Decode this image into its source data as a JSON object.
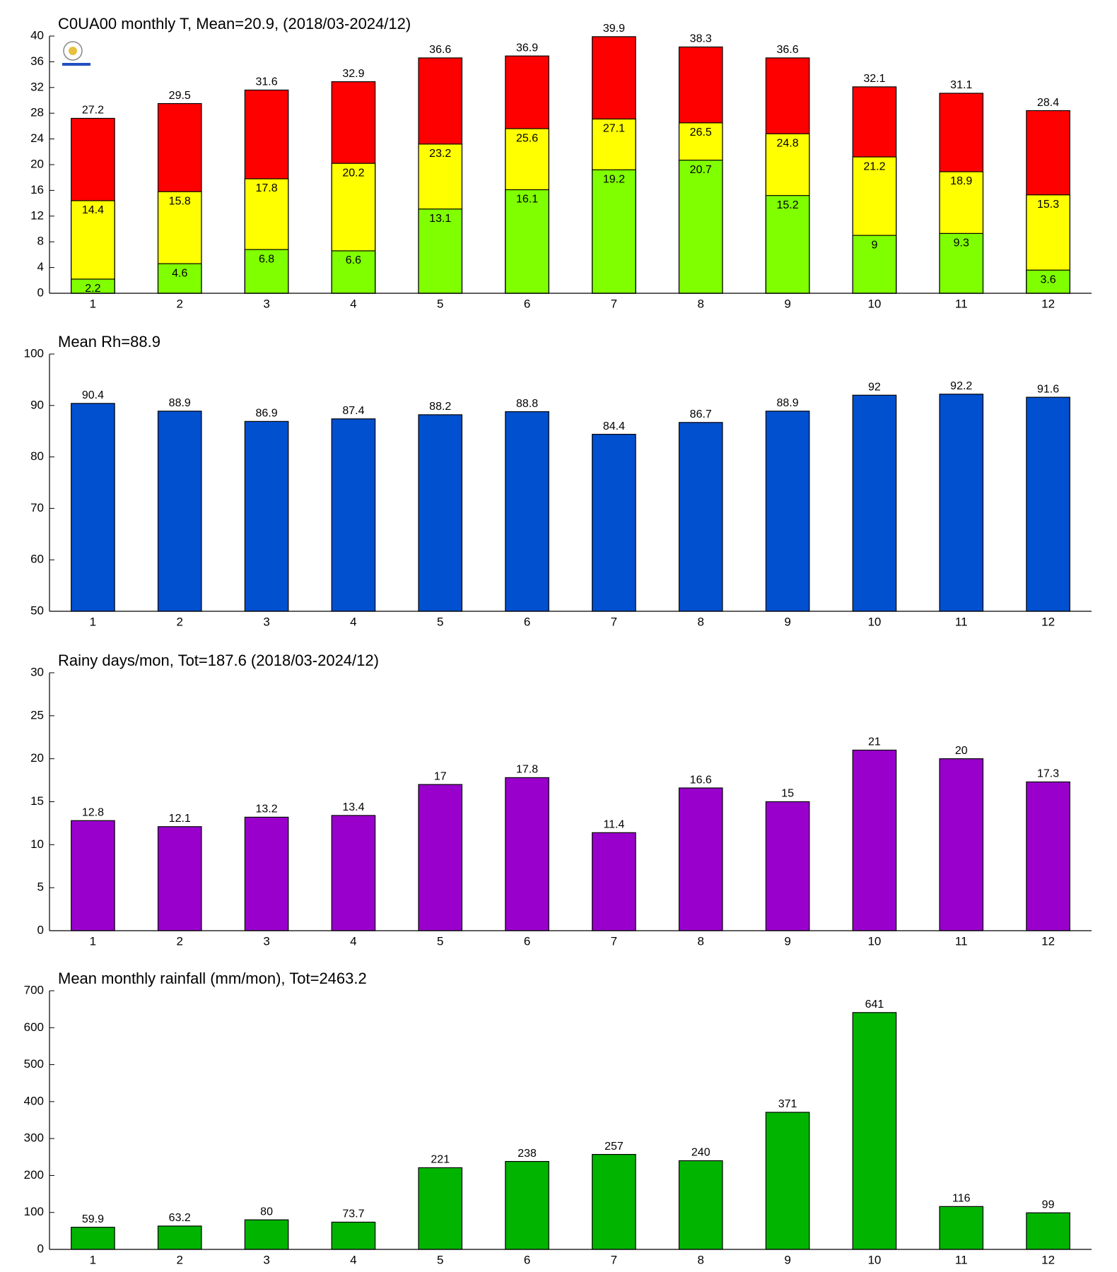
{
  "chart_data": [
    {
      "type": "bar",
      "title": "C0UA00 monthly T, Mean=20.9, (2018/03-2024/12)",
      "categories": [
        1,
        2,
        3,
        4,
        5,
        6,
        7,
        8,
        9,
        10,
        11,
        12
      ],
      "series": [
        {
          "color": "#ff0000",
          "values": [
            27.2,
            29.5,
            31.6,
            32.9,
            36.6,
            36.9,
            39.9,
            38.3,
            36.6,
            32.1,
            31.1,
            28.4
          ]
        },
        {
          "color": "#ffff00",
          "values": [
            14.4,
            15.8,
            17.8,
            20.2,
            23.2,
            25.6,
            27.1,
            26.5,
            24.8,
            21.2,
            18.9,
            15.3
          ]
        },
        {
          "color": "#80ff00",
          "values": [
            2.2,
            4.6,
            6.8,
            6.6,
            13.1,
            16.1,
            19.2,
            20.7,
            15.2,
            9,
            9.3,
            3.6
          ]
        }
      ],
      "ylim": [
        0,
        40
      ],
      "yticks": [
        0,
        4,
        8,
        12,
        16,
        20,
        24,
        28,
        32,
        36,
        40
      ]
    },
    {
      "type": "bar",
      "title": "Mean Rh=88.9",
      "categories": [
        1,
        2,
        3,
        4,
        5,
        6,
        7,
        8,
        9,
        10,
        11,
        12
      ],
      "values": [
        90.4,
        88.9,
        86.9,
        87.4,
        88.2,
        88.8,
        84.4,
        86.7,
        88.9,
        92,
        92.2,
        91.6
      ],
      "color": "#0050d0",
      "ylim": [
        50,
        100
      ],
      "yticks": [
        50,
        60,
        70,
        80,
        90,
        100
      ]
    },
    {
      "type": "bar",
      "title": "Rainy days/mon, Tot=187.6 (2018/03-2024/12)",
      "categories": [
        1,
        2,
        3,
        4,
        5,
        6,
        7,
        8,
        9,
        10,
        11,
        12
      ],
      "values": [
        12.8,
        12.1,
        13.2,
        13.4,
        17,
        17.8,
        11.4,
        16.6,
        15,
        21,
        20,
        17.3
      ],
      "color": "#9900cc",
      "ylim": [
        0,
        30
      ],
      "yticks": [
        0,
        5,
        10,
        15,
        20,
        25,
        30
      ]
    },
    {
      "type": "bar",
      "title": "Mean monthly rainfall (mm/mon), Tot=2463.2",
      "categories": [
        1,
        2,
        3,
        4,
        5,
        6,
        7,
        8,
        9,
        10,
        11,
        12
      ],
      "values": [
        59.9,
        63.2,
        80,
        73.7,
        221,
        238,
        257,
        240,
        371,
        641,
        116,
        99
      ],
      "color": "#00b400",
      "ylim": [
        0,
        700
      ],
      "yticks": [
        0,
        100,
        200,
        300,
        400,
        500,
        600,
        700
      ]
    }
  ]
}
